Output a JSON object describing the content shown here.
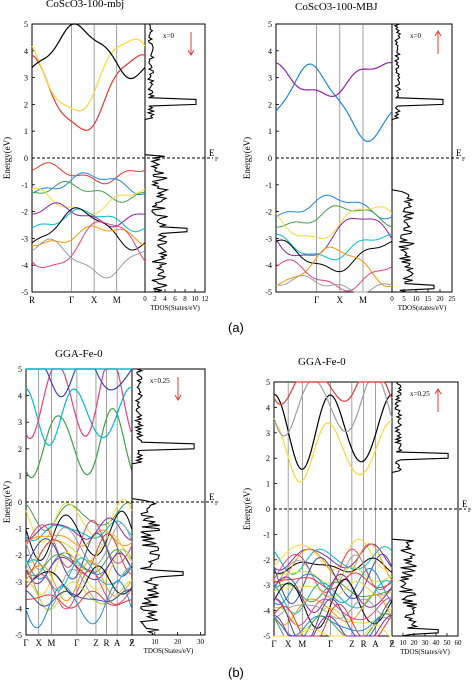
{
  "colors": {
    "bands": [
      "#e53935",
      "#1e88e5",
      "#43a047",
      "#fdd835",
      "#8e24aa",
      "#00bcd4",
      "#000000",
      "#ff9800",
      "#ec407a",
      "#9e9e9e",
      "#cddc39",
      "#3949ab"
    ],
    "axis": "#000000",
    "fermi": "#000000",
    "arrow": "#e53935"
  },
  "chart_data": [
    {
      "type": "line",
      "title": "CoScO3-100-mbj",
      "ylabel": "Energy(eV)",
      "ylim": [
        -5,
        5
      ],
      "yticks": [
        -5,
        -4,
        -3,
        -2,
        -1,
        0,
        1,
        2,
        3,
        4,
        5
      ],
      "kpath": [
        "R",
        "Γ",
        "X",
        "M",
        ""
      ],
      "fermi_label": "E",
      "fermi_sub": "F",
      "dos_xlabel": "TDOS(States/eV)",
      "dos_xticks": [
        0,
        2,
        4,
        6,
        8,
        10,
        12
      ],
      "spin_label": "x=0",
      "spin": "down"
    },
    {
      "type": "line",
      "title": "CoScO3-100-MBJ",
      "ylabel": "Energy(eV)",
      "ylim": [
        -5,
        5
      ],
      "yticks": [
        -5,
        -4,
        -3,
        -2,
        -1,
        0,
        1,
        2,
        3,
        4,
        5
      ],
      "kpath": [
        "",
        "Γ",
        "X",
        "M",
        ""
      ],
      "fermi_label": "E",
      "fermi_sub": "F",
      "dos_xlabel": "TDOS(states/eV)",
      "dos_xticks": [
        0,
        5,
        10,
        15,
        20,
        25
      ],
      "spin_label": "x=0",
      "spin": "up"
    },
    {
      "type": "line",
      "title": "GGA-Fe-0",
      "ylabel": "Energy(eV)",
      "ylim": [
        -5,
        5
      ],
      "yticks": [
        -5,
        -4,
        -3,
        -2,
        -1,
        0,
        1,
        2,
        3,
        4,
        5
      ],
      "kpath": [
        "Γ",
        "X",
        "M",
        "Γ",
        "Z",
        "R",
        "A",
        "Z"
      ],
      "fermi_label": "E",
      "fermi_sub": "F",
      "dos_xlabel": "TDOS(States/eV)",
      "dos_xticks": [
        0,
        10,
        20,
        30
      ],
      "spin_label": "x=0.25",
      "spin": "down"
    },
    {
      "type": "line",
      "title": "GGA-Fe-0",
      "ylabel": "Energy(eV)",
      "ylim": [
        -5,
        5
      ],
      "yticks": [
        -5,
        -4,
        -3,
        -2,
        -1,
        0,
        1,
        2,
        3,
        4,
        5
      ],
      "kpath": [
        "Γ",
        "X",
        "M",
        "Γ",
        "Z",
        "R",
        "A",
        "Z"
      ],
      "fermi_label": "E",
      "fermi_sub": "F",
      "dos_xlabel": "TDOS(States/eV)",
      "dos_xticks": [
        0,
        10,
        20,
        30,
        40,
        50,
        60
      ],
      "spin_label": "x=0.25",
      "spin": "up"
    }
  ],
  "captions": {
    "a": "(a)",
    "b": "(b)"
  }
}
